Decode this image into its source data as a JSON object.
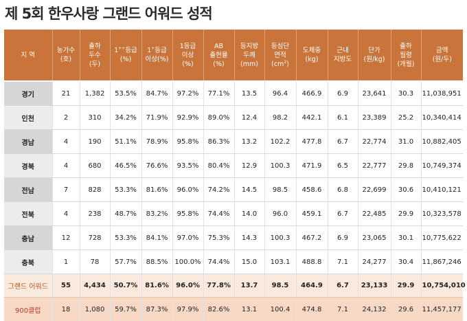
{
  "title": "제 5회 한우사랑 그랜드 어워드 성적",
  "headers": [
    [
      "지 역"
    ],
    [
      "농가수",
      "(호)"
    ],
    [
      "출하",
      "두수",
      "(두)"
    ],
    [
      "1++등급",
      "(%)"
    ],
    [
      "1+등급",
      "이상(%)"
    ],
    [
      "1등급",
      "이상",
      "(%)"
    ],
    [
      "AB",
      "출현율",
      "(%)"
    ],
    [
      "등지방",
      "두께",
      "(mm)"
    ],
    [
      "등심단",
      "면적",
      "(cm2)"
    ],
    [
      "도체중",
      "(kg)"
    ],
    [
      "근내",
      "지방도"
    ],
    [
      "단가",
      "(원/kg)"
    ],
    [
      "출하",
      "월령",
      "(개월)"
    ],
    [
      "금액",
      "(원/두)"
    ]
  ],
  "rows": [
    [
      "경기",
      "21",
      "1,382",
      "53.5%",
      "84.7%",
      "97.2%",
      "77.1%",
      "13.5",
      "96.4",
      "466.9",
      "6.9",
      "23,641",
      "30.3",
      "11,038,951"
    ],
    [
      "인천",
      "2",
      "310",
      "34.2%",
      "71.9%",
      "92.9%",
      "89.0%",
      "12.4",
      "98.2",
      "442.1",
      "6.1",
      "23,389",
      "25.2",
      "10,340,414"
    ],
    [
      "경남",
      "4",
      "190",
      "51.1%",
      "78.9%",
      "95.8%",
      "86.3%",
      "13.2",
      "102.2",
      "477.8",
      "6.7",
      "22,774",
      "31.0",
      "10,882,405"
    ],
    [
      "경북",
      "4",
      "680",
      "46.5%",
      "76.6%",
      "93.5%",
      "80.4%",
      "12.9",
      "100.3",
      "471.9",
      "6.5",
      "22,777",
      "29.8",
      "10,749,374"
    ],
    [
      "전남",
      "7",
      "828",
      "53.3%",
      "81.6%",
      "96.0%",
      "74.2%",
      "14.5",
      "98.5",
      "458.6",
      "6.8",
      "22,699",
      "30.6",
      "10,410,121"
    ],
    [
      "전북",
      "4",
      "238",
      "48.7%",
      "83.2%",
      "95.8%",
      "74.4%",
      "14.0",
      "96.0",
      "459.1",
      "6.7",
      "22,485",
      "29.9",
      "10,323,578"
    ],
    [
      "충남",
      "12",
      "728",
      "53.3%",
      "84.1%",
      "97.0%",
      "75.3%",
      "14.3",
      "100.3",
      "467.2",
      "6.9",
      "23,065",
      "30.1",
      "10,775,622"
    ],
    [
      "충북",
      "1",
      "78",
      "57.7%",
      "88.5%",
      "100.0%",
      "74.4%",
      "15.0",
      "103.1",
      "488.8",
      "7.1",
      "24,277",
      "30.4",
      "11,867,246"
    ]
  ],
  "grand": [
    "그랜드 어워드",
    "55",
    "4,434",
    "50.7%",
    "81.6%",
    "96.0%",
    "77.8%",
    "13.7",
    "98.5",
    "464.9",
    "6.7",
    "23,133",
    "29.9",
    "10,754,010"
  ],
  "club": [
    "900클럽",
    "18",
    "1,080",
    "59.7%",
    "87.3%",
    "97.9%",
    "82.6%",
    "13.1",
    "100.4",
    "474.8",
    "7.1",
    "24,132",
    "29.6",
    "11,457,177"
  ],
  "colors": {
    "header": "#c8743a",
    "grand_row": "#faeadd",
    "club_row": "#f7d9c6",
    "club_text": "#c0392b"
  }
}
